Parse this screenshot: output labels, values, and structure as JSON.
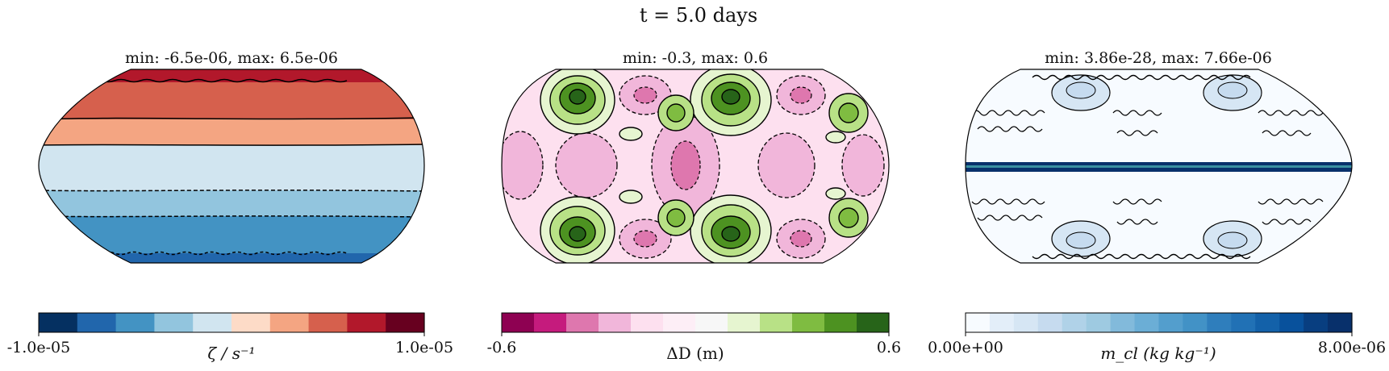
{
  "figure": {
    "title": "t = 5.0 days"
  },
  "panels": [
    {
      "id": "vorticity",
      "subtitle": "min: -6.5e-06, max: 6.5e-06",
      "colorbar": {
        "label": "ζ / s⁻¹",
        "tick_min": "-1.0e-05",
        "tick_max": "1.0e-05",
        "colors": [
          "#053061",
          "#2166ac",
          "#4393c3",
          "#92c5de",
          "#d1e5f0",
          "#fddbc7",
          "#f4a582",
          "#d6604d",
          "#b2182b",
          "#67001f"
        ]
      }
    },
    {
      "id": "depth-anomaly",
      "subtitle": "min: -0.3, max: 0.6",
      "colorbar": {
        "label": "ΔD (m)",
        "tick_min": "-0.6",
        "tick_max": "0.6",
        "colors": [
          "#8e0152",
          "#c51b7d",
          "#de77ae",
          "#f1b6da",
          "#fde0ef",
          "#fdeef6",
          "#f7f7f7",
          "#e6f5d0",
          "#b8e186",
          "#7fbc41",
          "#4d9221",
          "#276419"
        ]
      }
    },
    {
      "id": "cloud-mass",
      "subtitle": "min: 3.86e-28, max: 7.66e-06",
      "colorbar": {
        "label": "m_cl (kg kg⁻¹)",
        "tick_min": "0.00e+00",
        "tick_max": "8.00e-06",
        "colors": [
          "#f7fbff",
          "#e3eef9",
          "#d6e6f4",
          "#c6dbef",
          "#b0d2e8",
          "#9ecae1",
          "#82badb",
          "#6baed6",
          "#539ecd",
          "#4292c6",
          "#2f7ebc",
          "#2171b5",
          "#1361a9",
          "#08519c",
          "#083e80",
          "#08306b"
        ]
      }
    }
  ]
}
